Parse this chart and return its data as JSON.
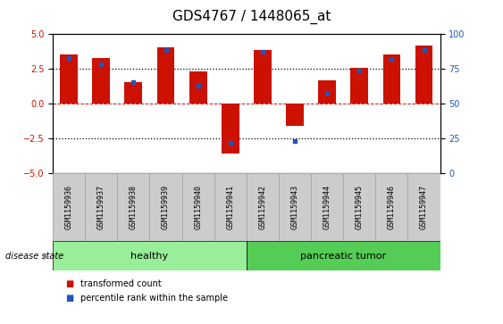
{
  "title": "GDS4767 / 1448065_at",
  "samples": [
    "GSM1159936",
    "GSM1159937",
    "GSM1159938",
    "GSM1159939",
    "GSM1159940",
    "GSM1159941",
    "GSM1159942",
    "GSM1159943",
    "GSM1159944",
    "GSM1159945",
    "GSM1159946",
    "GSM1159947"
  ],
  "bar_values": [
    3.55,
    3.3,
    1.55,
    4.05,
    2.3,
    -3.6,
    3.85,
    -1.6,
    1.7,
    2.6,
    3.55,
    4.2
  ],
  "blue_dot_values": [
    3.3,
    2.8,
    1.55,
    3.85,
    1.3,
    -2.78,
    3.7,
    -2.65,
    0.75,
    2.4,
    3.2,
    3.85
  ],
  "bar_color": "#cc1100",
  "dot_color": "#2255bb",
  "ylim": [
    -5,
    5
  ],
  "yticks_left": [
    -5,
    -2.5,
    0,
    2.5,
    5
  ],
  "yticks_right": [
    0,
    25,
    50,
    75,
    100
  ],
  "groups": [
    {
      "label": "healthy",
      "start": 0,
      "end": 5,
      "color": "#99ee99"
    },
    {
      "label": "pancreatic tumor",
      "start": 6,
      "end": 11,
      "color": "#55cc55"
    }
  ],
  "disease_state_label": "disease state",
  "legend_items": [
    {
      "label": "transformed count",
      "color": "#cc1100"
    },
    {
      "label": "percentile rank within the sample",
      "color": "#2255bb"
    }
  ],
  "bar_width": 0.55,
  "background_color": "#ffffff",
  "sample_box_color": "#cccccc",
  "sample_box_edge": "#aaaaaa",
  "title_fontsize": 11,
  "tick_fontsize": 7,
  "sample_fontsize": 6,
  "group_fontsize": 8,
  "legend_fontsize": 7
}
